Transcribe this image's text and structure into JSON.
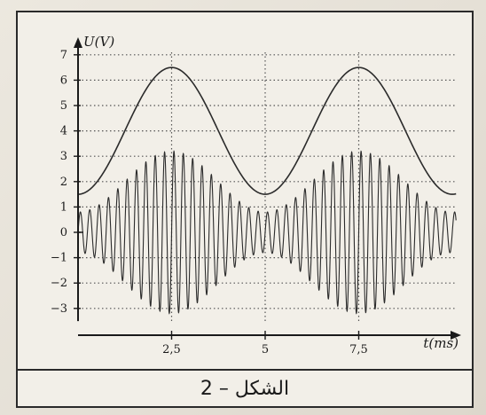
{
  "caption": "الشكل – 2",
  "chart_data": {
    "type": "line",
    "xlabel": "t(ms)",
    "ylabel": "U(V)",
    "xlim": [
      0,
      10
    ],
    "ylim": [
      -3.5,
      7.3
    ],
    "x_ticks": [
      {
        "value": 2.5,
        "label": "2,5"
      },
      {
        "value": 5,
        "label": "5"
      },
      {
        "value": 7.5,
        "label": "7,5"
      }
    ],
    "y_ticks": [
      {
        "value": 7,
        "label": "7"
      },
      {
        "value": 6,
        "label": "6"
      },
      {
        "value": 5,
        "label": "5"
      },
      {
        "value": 4,
        "label": "4"
      },
      {
        "value": 3,
        "label": "3"
      },
      {
        "value": 2,
        "label": "2"
      },
      {
        "value": 1,
        "label": "1"
      },
      {
        "value": 0,
        "label": "0"
      },
      {
        "value": -1,
        "label": "−1"
      },
      {
        "value": -2,
        "label": "−2"
      },
      {
        "value": -3,
        "label": "−3"
      }
    ],
    "grid": true,
    "series": [
      {
        "kind": "modulating-signal",
        "offset": 4,
        "amplitude": 2.5,
        "period_ms": 5,
        "peak_at_ms": 2.5,
        "x_range": [
          0,
          10.1
        ]
      },
      {
        "kind": "amplitude-modulated-signal",
        "max_amplitude": 3.2,
        "min_amplitude": 0.8,
        "carrier_cycles_per_ms": 4,
        "envelope_period_ms": 5,
        "envelope_peak_at_ms": 2.5,
        "x_range": [
          0,
          10.1
        ]
      }
    ],
    "colors": {
      "curve": "#2b2b2b",
      "grid": "#555555",
      "axes": "#1a1a1a"
    }
  }
}
